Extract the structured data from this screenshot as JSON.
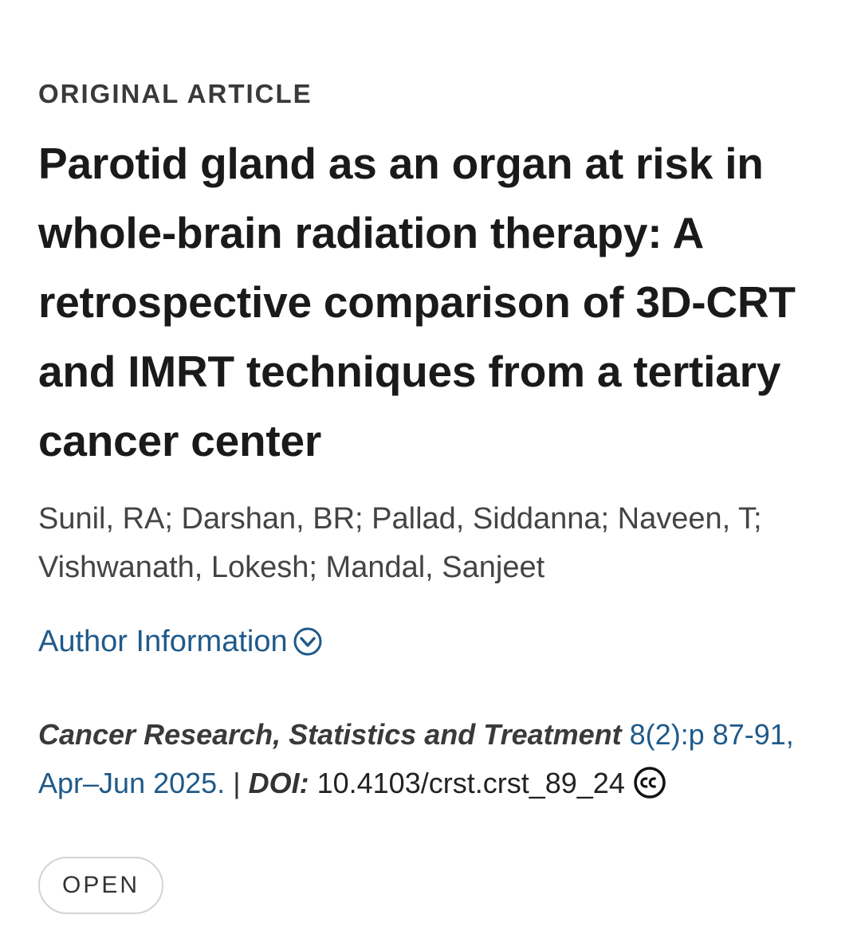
{
  "article": {
    "kicker": "ORIGINAL ARTICLE",
    "title": "Parotid gland as an organ at risk in whole-brain radiation therapy: A retrospective comparison of 3D-CRT and IMRT techniques from a tertiary cancer center",
    "authors": "Sunil, RA; Darshan, BR; Pallad, Siddanna; Naveen, T; Vishwanath, Lokesh; Mandal, Sanjeet",
    "author_info_label": "Author Information",
    "author_info_icon": "chevron-down-circle-icon",
    "citation": {
      "journal": "Cancer Research, Statistics and Treatment",
      "issue": "8(2):p 87-91, Apr–Jun 2025.",
      "separator": "|",
      "doi_label": "DOI:",
      "doi_value": "10.4103/crst.crst_89_24",
      "license_icon": "creative-commons-icon"
    },
    "badge": "OPEN"
  },
  "colors": {
    "link": "#1f5a8a",
    "text": "#1a1a1a",
    "muted": "#444444"
  }
}
